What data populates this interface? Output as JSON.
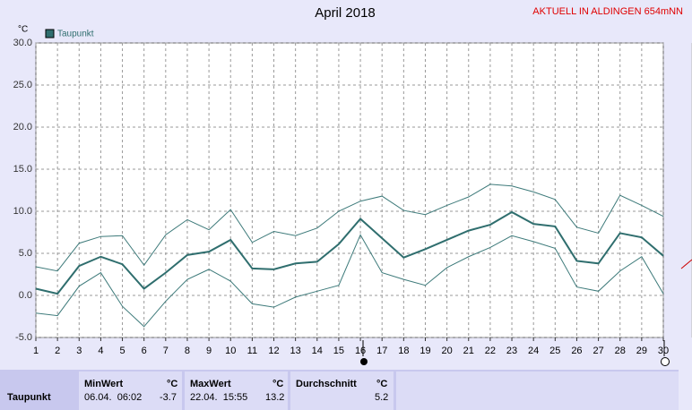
{
  "chart_data": {
    "type": "line",
    "title": "April 2018",
    "note": "AKTUELL IN ALDINGEN 654mNN",
    "y_label": "°C",
    "x": [
      1,
      2,
      3,
      4,
      5,
      6,
      7,
      8,
      9,
      10,
      11,
      12,
      13,
      14,
      15,
      16,
      17,
      18,
      19,
      20,
      21,
      22,
      23,
      24,
      25,
      26,
      27,
      28,
      29,
      30
    ],
    "xlim": [
      1,
      30
    ],
    "xticks": [
      1,
      2,
      3,
      4,
      5,
      6,
      7,
      8,
      9,
      10,
      11,
      12,
      13,
      14,
      15,
      16,
      17,
      18,
      19,
      20,
      21,
      22,
      23,
      24,
      25,
      26,
      27,
      28,
      29,
      30
    ],
    "ylim": [
      -5,
      30
    ],
    "yticks": [
      {
        "value": -5,
        "label": "-5.0"
      },
      {
        "value": 0,
        "label": "0.0"
      },
      {
        "value": 5,
        "label": "5.0"
      },
      {
        "value": 10,
        "label": "10.0"
      },
      {
        "value": 15,
        "label": "15.0"
      },
      {
        "value": 20,
        "label": "20.0"
      },
      {
        "value": 25,
        "label": "25.0"
      },
      {
        "value": 30,
        "label": "30.0"
      }
    ],
    "grid": true,
    "series": [
      {
        "name": "Taupunkt",
        "color": "#2f6e6e",
        "line_width": 2,
        "values": [
          0.8,
          0.2,
          3.5,
          4.6,
          3.7,
          0.8,
          2.7,
          4.8,
          5.2,
          6.6,
          3.2,
          3.1,
          3.8,
          4.0,
          6.1,
          9.1,
          6.8,
          4.5,
          5.5,
          6.6,
          7.7,
          8.4,
          9.9,
          8.5,
          8.2,
          4.1,
          3.8,
          7.4,
          6.9,
          4.7
        ]
      },
      {
        "color": "#3d7a7a",
        "line_width": 1,
        "values": [
          3.4,
          2.9,
          6.2,
          7.0,
          7.1,
          3.6,
          7.2,
          9.0,
          7.8,
          10.2,
          6.3,
          7.6,
          7.1,
          8.0,
          10.0,
          11.2,
          11.8,
          10.1,
          9.6,
          10.7,
          11.7,
          13.2,
          13.0,
          12.3,
          11.4,
          8.1,
          7.4,
          11.9,
          10.7,
          9.4
        ]
      },
      {
        "color": "#3d7a7a",
        "line_width": 1,
        "values": [
          -2.1,
          -2.4,
          1.1,
          2.7,
          -1.3,
          -3.7,
          -0.7,
          1.9,
          3.1,
          1.7,
          -1.0,
          -1.4,
          -0.2,
          0.5,
          1.2,
          7.2,
          2.7,
          1.9,
          1.2,
          3.3,
          4.6,
          5.7,
          7.1,
          6.4,
          5.6,
          1.0,
          0.5,
          2.9,
          4.6,
          0.2
        ]
      }
    ]
  },
  "table": {
    "headers": [
      "MinWert",
      "°C",
      "MaxWert",
      "°C",
      "Durchschnitt",
      "°C"
    ],
    "rows": [
      [
        "Taupunkt",
        "06.04.  06:02",
        "-3.7",
        "22.04.  15:55",
        "13.2",
        "5.2"
      ]
    ]
  }
}
